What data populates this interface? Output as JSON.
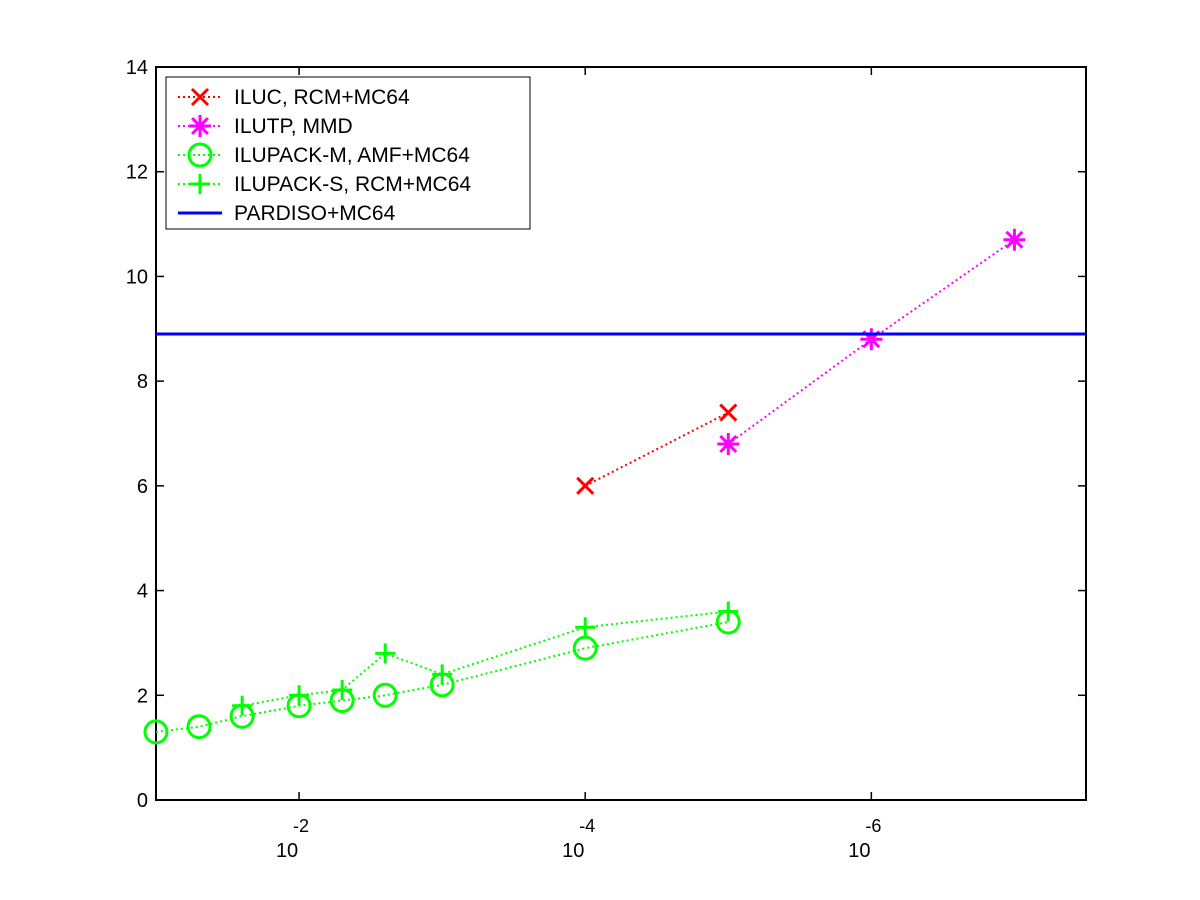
{
  "chart_data": {
    "type": "line",
    "x_scale": "log",
    "x_reversed": true,
    "xlim": [
      0.1,
      3.16e-08
    ],
    "ylim": [
      0,
      14
    ],
    "title": "",
    "xlabel": "",
    "ylabel": "",
    "grid": false,
    "legend_position": "top-left",
    "x_ticks": [
      {
        "value": 0.01,
        "base": "10",
        "exp": "-2"
      },
      {
        "value": 0.0001,
        "base": "10",
        "exp": "-4"
      },
      {
        "value": 1e-06,
        "base": "10",
        "exp": "-6"
      }
    ],
    "y_ticks": [
      {
        "value": 0,
        "label": "0"
      },
      {
        "value": 2,
        "label": "2"
      },
      {
        "value": 4,
        "label": "4"
      },
      {
        "value": 6,
        "label": "6"
      },
      {
        "value": 8,
        "label": "8"
      },
      {
        "value": 10,
        "label": "10"
      },
      {
        "value": 12,
        "label": "12"
      },
      {
        "value": 14,
        "label": "14"
      }
    ],
    "series": [
      {
        "name": "ILUC, RCM+MC64",
        "color": "#ff0000",
        "line_style": "dotted",
        "marker": "x",
        "x": [
          0.0001,
          1e-05
        ],
        "y": [
          6.0,
          7.4
        ]
      },
      {
        "name": "ILUTP, MMD",
        "color": "#ff00ff",
        "line_style": "dotted",
        "marker": "asterisk",
        "x": [
          1e-05,
          1e-06,
          1e-07
        ],
        "y": [
          6.8,
          8.8,
          10.7
        ]
      },
      {
        "name": "ILUPACK-M, AMF+MC64",
        "color": "#00ff00",
        "line_style": "dotted",
        "marker": "circle",
        "x": [
          0.1,
          0.05,
          0.025,
          0.01,
          0.005,
          0.0025,
          0.001,
          0.0001,
          1e-05
        ],
        "y": [
          1.3,
          1.4,
          1.6,
          1.8,
          1.9,
          2.0,
          2.2,
          2.9,
          3.4
        ]
      },
      {
        "name": "ILUPACK-S, RCM+MC64",
        "color": "#00ff00",
        "line_style": "dotted",
        "marker": "plus",
        "x": [
          0.025,
          0.01,
          0.005,
          0.0025,
          0.001,
          0.0001,
          1e-05
        ],
        "y": [
          1.8,
          2.0,
          2.1,
          2.8,
          2.4,
          3.3,
          3.6
        ]
      },
      {
        "name": "PARDISO+MC64",
        "color": "#0000ff",
        "line_style": "solid",
        "marker": "none",
        "x": [
          0.1,
          3.16e-08
        ],
        "y": [
          8.9,
          8.9
        ]
      }
    ]
  }
}
